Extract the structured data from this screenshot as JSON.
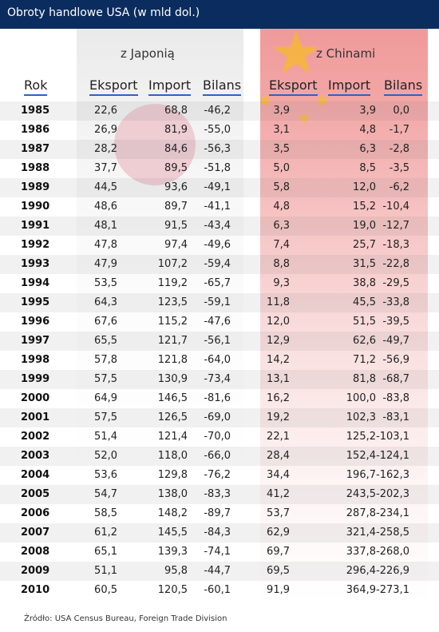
{
  "title": "Obroty handlowe USA (w mld dol.)",
  "groups": {
    "japan": "z Japonią",
    "china": "z Chinami"
  },
  "headers": {
    "year": "Rok",
    "export": "Eksport",
    "import": "Import",
    "balance": "Bilans"
  },
  "footer": "Źródło: USA Census Bureau, Foreign Trade Division",
  "colors": {
    "title_bar": "#0b2c5e",
    "underline": "#2a63c9",
    "china_flag": "#e8312f",
    "star": "#f7c200",
    "japan_sun": "#ecc6cd"
  },
  "chart_data": {
    "type": "table",
    "columns": [
      "Rok",
      "Eksport",
      "Import",
      "Bilans",
      "Eksport",
      "Import",
      "Bilans"
    ],
    "rows": [
      [
        "1985",
        "22,6",
        "68,8",
        "-46,2",
        "3,9",
        "3,9",
        "0,0"
      ],
      [
        "1986",
        "26,9",
        "81,9",
        "-55,0",
        "3,1",
        "4,8",
        "-1,7"
      ],
      [
        "1987",
        "28,2",
        "84,6",
        "-56,3",
        "3,5",
        "6,3",
        "-2,8"
      ],
      [
        "1988",
        "37,7",
        "89,5",
        "-51,8",
        "5,0",
        "8,5",
        "-3,5"
      ],
      [
        "1989",
        "44,5",
        "93,6",
        "-49,1",
        "5,8",
        "12,0",
        "-6,2"
      ],
      [
        "1990",
        "48,6",
        "89,7",
        "-41,1",
        "4,8",
        "15,2",
        "-10,4"
      ],
      [
        "1991",
        "48,1",
        "91,5",
        "-43,4",
        "6,3",
        "19,0",
        "-12,7"
      ],
      [
        "1992",
        "47,8",
        "97,4",
        "-49,6",
        "7,4",
        "25,7",
        "-18,3"
      ],
      [
        "1993",
        "47,9",
        "107,2",
        "-59,4",
        "8,8",
        "31,5",
        "-22,8"
      ],
      [
        "1994",
        "53,5",
        "119,2",
        "-65,7",
        "9,3",
        "38,8",
        "-29,5"
      ],
      [
        "1995",
        "64,3",
        "123,5",
        "-59,1",
        "11,8",
        "45,5",
        "-33,8"
      ],
      [
        "1996",
        "67,6",
        "115,2",
        "-47,6",
        "12,0",
        "51,5",
        "-39,5"
      ],
      [
        "1997",
        "65,5",
        "121,7",
        "-56,1",
        "12,9",
        "62,6",
        "-49,7"
      ],
      [
        "1998",
        "57,8",
        "121,8",
        "-64,0",
        "14,2",
        "71,2",
        "-56,9"
      ],
      [
        "1999",
        "57,5",
        "130,9",
        "-73,4",
        "13,1",
        "81,8",
        "-68,7"
      ],
      [
        "2000",
        "64,9",
        "146,5",
        "-81,6",
        "16,2",
        "100,0",
        "-83,8"
      ],
      [
        "2001",
        "57,5",
        "126,5",
        "-69,0",
        "19,2",
        "102,3",
        "-83,1"
      ],
      [
        "2002",
        "51,4",
        "121,4",
        "-70,0",
        "22,1",
        "125,2",
        "-103,1"
      ],
      [
        "2003",
        "52,0",
        "118,0",
        "-66,0",
        "28,4",
        "152,4",
        "-124,1"
      ],
      [
        "2004",
        "53,6",
        "129,8",
        "-76,2",
        "34,4",
        "196,7",
        "-162,3"
      ],
      [
        "2005",
        "54,7",
        "138,0",
        "-83,3",
        "41,2",
        "243,5",
        "-202,3"
      ],
      [
        "2006",
        "58,5",
        "148,2",
        "-89,7",
        "53,7",
        "287,8",
        "-234,1"
      ],
      [
        "2007",
        "61,2",
        "145,5",
        "-84,3",
        "62,9",
        "321,4",
        "-258,5"
      ],
      [
        "2008",
        "65,1",
        "139,3",
        "-74,1",
        "69,7",
        "337,8",
        "-268,0"
      ],
      [
        "2009",
        "51,1",
        "95,8",
        "-44,7",
        "69,5",
        "296,4",
        "-226,9"
      ],
      [
        "2010",
        "60,5",
        "120,5",
        "-60,1",
        "91,9",
        "364,9",
        "-273,1"
      ]
    ]
  }
}
